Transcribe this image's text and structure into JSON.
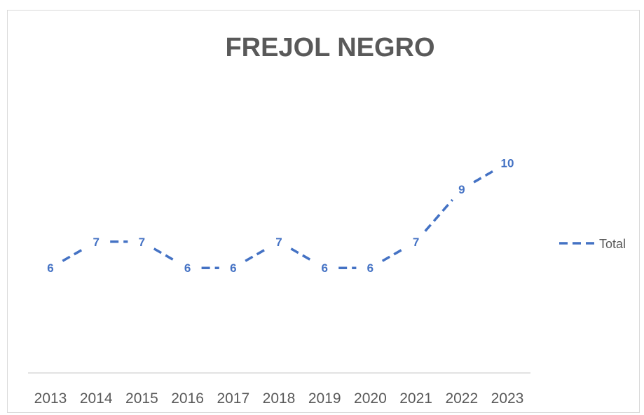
{
  "chart_data": {
    "type": "line",
    "title": "FREJOL NEGRO",
    "xlabel": "",
    "ylabel": "",
    "categories": [
      "2013",
      "2014",
      "2015",
      "2016",
      "2017",
      "2018",
      "2019",
      "2020",
      "2021",
      "2022",
      "2023"
    ],
    "series": [
      {
        "name": "Total",
        "values": [
          6,
          7,
          7,
          6,
          6,
          7,
          6,
          6,
          7,
          9,
          10
        ],
        "color": "#4472c4",
        "line_style": "dashed",
        "data_labels": true
      }
    ],
    "ylim": [
      2,
      11
    ],
    "grid": false,
    "y_axis_visible": false,
    "legend": "right"
  }
}
